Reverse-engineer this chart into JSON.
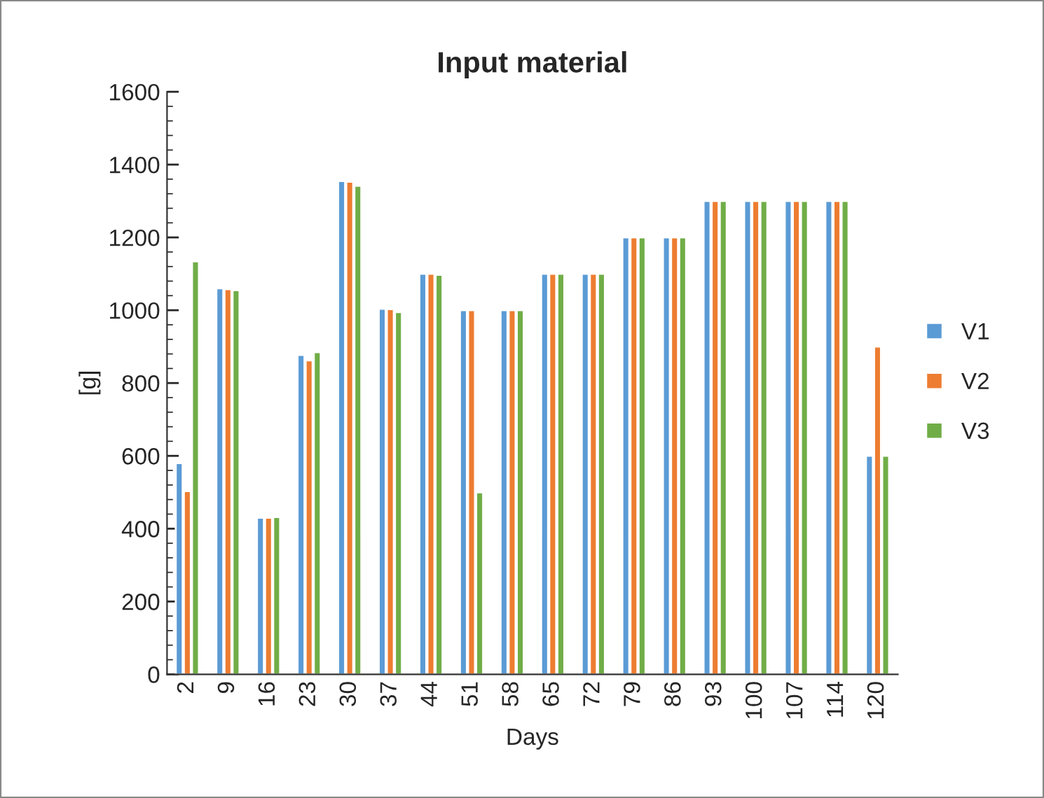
{
  "chart_data": {
    "type": "bar",
    "title": "Input material",
    "xlabel": "Days",
    "ylabel": "[g]",
    "categories": [
      "2",
      "9",
      "16",
      "23",
      "30",
      "37",
      "44",
      "51",
      "58",
      "65",
      "72",
      "79",
      "86",
      "93",
      "100",
      "107",
      "114",
      "120"
    ],
    "series": [
      {
        "name": "V1",
        "color": "#5b9bd5",
        "values": [
          580,
          1060,
          430,
          877,
          1355,
          1004,
          1100,
          1000,
          1000,
          1100,
          1100,
          1200,
          1200,
          1300,
          1300,
          1300,
          1300,
          600
        ]
      },
      {
        "name": "V2",
        "color": "#ed7d31",
        "values": [
          503,
          1058,
          430,
          862,
          1353,
          1003,
          1100,
          1000,
          1000,
          1100,
          1100,
          1200,
          1200,
          1300,
          1300,
          1300,
          1300,
          900
        ]
      },
      {
        "name": "V3",
        "color": "#70ad47",
        "values": [
          1134,
          1055,
          432,
          885,
          1342,
          995,
          1097,
          500,
          1000,
          1100,
          1100,
          1200,
          1200,
          1300,
          1300,
          1300,
          1300,
          600
        ]
      }
    ],
    "ylim": [
      0,
      1600
    ],
    "yticks": [
      0,
      200,
      400,
      600,
      800,
      1000,
      1200,
      1400,
      1600
    ],
    "grid": false,
    "legend": "right"
  }
}
